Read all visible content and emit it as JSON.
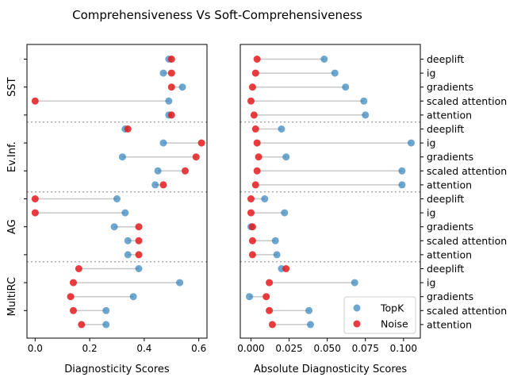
{
  "figure_title": "Comprehensiveness Vs Soft-Comprehensiveness",
  "colors": {
    "topk": "#1f77b4",
    "noise": "#e41a1c",
    "connector": "#c8c8c8",
    "separator": "#aaaaaa"
  },
  "chart_data": [
    {
      "type": "dumbbell",
      "title": "",
      "xlabel": "Diagnosticity Scores",
      "xlim": [
        -0.03,
        0.63
      ],
      "xticks": [
        "0.0",
        "0.2",
        "0.4",
        "0.6"
      ],
      "xtick_values": [
        0,
        0.2,
        0.4,
        0.6
      ],
      "group_labels": [
        "SST",
        "Ev.Inf.",
        "AG",
        "MultiRC"
      ],
      "row_labels": [
        "deeplift",
        "ig",
        "gradients",
        "scaled attention",
        "attention"
      ],
      "grid": false,
      "series": [
        {
          "name": "TopK",
          "values": [
            [
              0.49,
              0.47,
              0.54,
              0.49,
              0.49
            ],
            [
              0.33,
              0.47,
              0.32,
              0.45,
              0.44
            ],
            [
              0.3,
              0.33,
              0.29,
              0.34,
              0.34
            ],
            [
              0.38,
              0.53,
              0.36,
              0.26,
              0.26
            ]
          ]
        },
        {
          "name": "Noise",
          "values": [
            [
              0.5,
              0.5,
              0.5,
              0.0,
              0.5
            ],
            [
              0.34,
              0.61,
              0.59,
              0.55,
              0.47
            ],
            [
              0.0,
              0.0,
              0.38,
              0.38,
              0.38
            ],
            [
              0.16,
              0.14,
              0.13,
              0.14,
              0.17
            ]
          ]
        }
      ]
    },
    {
      "type": "dumbbell",
      "title": "",
      "xlabel": "Absolute Diagnosticity Scores",
      "xlim": [
        -0.007,
        0.111
      ],
      "xticks": [
        "0.000",
        "0.025",
        "0.050",
        "0.075",
        "0.100"
      ],
      "xtick_values": [
        0,
        0.025,
        0.05,
        0.075,
        0.1
      ],
      "group_labels": [
        "SST",
        "Ev.Inf.",
        "AG",
        "MultiRC"
      ],
      "row_labels": [
        "deeplift",
        "ig",
        "gradients",
        "scaled attention",
        "attention"
      ],
      "grid": false,
      "legend": {
        "placement": "lower-right",
        "entries": [
          "TopK",
          "Noise"
        ]
      },
      "series": [
        {
          "name": "TopK",
          "values": [
            [
              0.048,
              0.055,
              0.062,
              0.074,
              0.075
            ],
            [
              0.02,
              0.105,
              0.023,
              0.099,
              0.099
            ],
            [
              0.009,
              0.022,
              0.0,
              0.016,
              0.017
            ],
            [
              0.02,
              0.068,
              -0.001,
              0.038,
              0.039
            ]
          ]
        },
        {
          "name": "Noise",
          "values": [
            [
              0.004,
              0.003,
              0.001,
              0.0,
              0.002
            ],
            [
              0.003,
              0.004,
              0.005,
              0.004,
              0.003
            ],
            [
              0.0,
              0.0,
              0.001,
              0.001,
              0.001
            ],
            [
              0.023,
              0.012,
              0.01,
              0.012,
              0.014
            ]
          ]
        }
      ]
    }
  ]
}
